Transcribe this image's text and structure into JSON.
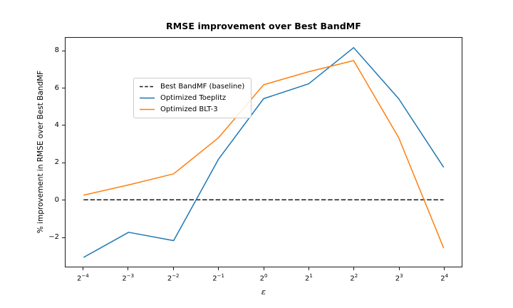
{
  "figure": {
    "title": "RMSE improvement over Best BandMF",
    "xlabel": "ε",
    "ylabel": "% improvement in RMSE over Best BandMF"
  },
  "chart_data": {
    "type": "line",
    "title": "RMSE improvement over Best BandMF",
    "xlabel": "ε",
    "ylabel": "% improvement in RMSE over Best BandMF",
    "x_log2": [
      -4,
      -3,
      -2,
      -1,
      0,
      1,
      2,
      3,
      4
    ],
    "x_tick_labels": [
      {
        "base": "2",
        "exponent": "−4"
      },
      {
        "base": "2",
        "exponent": "−3"
      },
      {
        "base": "2",
        "exponent": "−2"
      },
      {
        "base": "2",
        "exponent": "−1"
      },
      {
        "base": "2",
        "exponent": "0"
      },
      {
        "base": "2",
        "exponent": "1"
      },
      {
        "base": "2",
        "exponent": "2"
      },
      {
        "base": "2",
        "exponent": "3"
      },
      {
        "base": "2",
        "exponent": "4"
      }
    ],
    "y_ticks": [
      {
        "value": -2,
        "label": "−2"
      },
      {
        "value": 0,
        "label": "0"
      },
      {
        "value": 2,
        "label": "2"
      },
      {
        "value": 4,
        "label": "4"
      },
      {
        "value": 6,
        "label": "6"
      },
      {
        "value": 8,
        "label": "8"
      }
    ],
    "xlim_log2": [
      -4.4,
      4.4
    ],
    "ylim": [
      -3.6,
      8.73
    ],
    "grid": false,
    "legend_position": "upper left",
    "series": [
      {
        "id": "baseline",
        "name": "Best BandMF (baseline)",
        "color": "#1a1a1a",
        "dashed": true,
        "values": [
          0,
          0,
          0,
          0,
          0,
          0,
          0,
          0,
          0
        ]
      },
      {
        "id": "toeplitz",
        "name": "Optimized Toeplitz",
        "color": "#1f77b4",
        "dashed": false,
        "values": [
          -3.1,
          -1.75,
          -2.2,
          2.2,
          5.45,
          6.25,
          8.2,
          5.45,
          1.75
        ]
      },
      {
        "id": "blt3",
        "name": "Optimized BLT-3",
        "color": "#ff7f0e",
        "dashed": false,
        "values": [
          0.25,
          0.8,
          1.4,
          3.35,
          6.2,
          6.9,
          7.5,
          3.35,
          -2.6
        ]
      }
    ]
  }
}
